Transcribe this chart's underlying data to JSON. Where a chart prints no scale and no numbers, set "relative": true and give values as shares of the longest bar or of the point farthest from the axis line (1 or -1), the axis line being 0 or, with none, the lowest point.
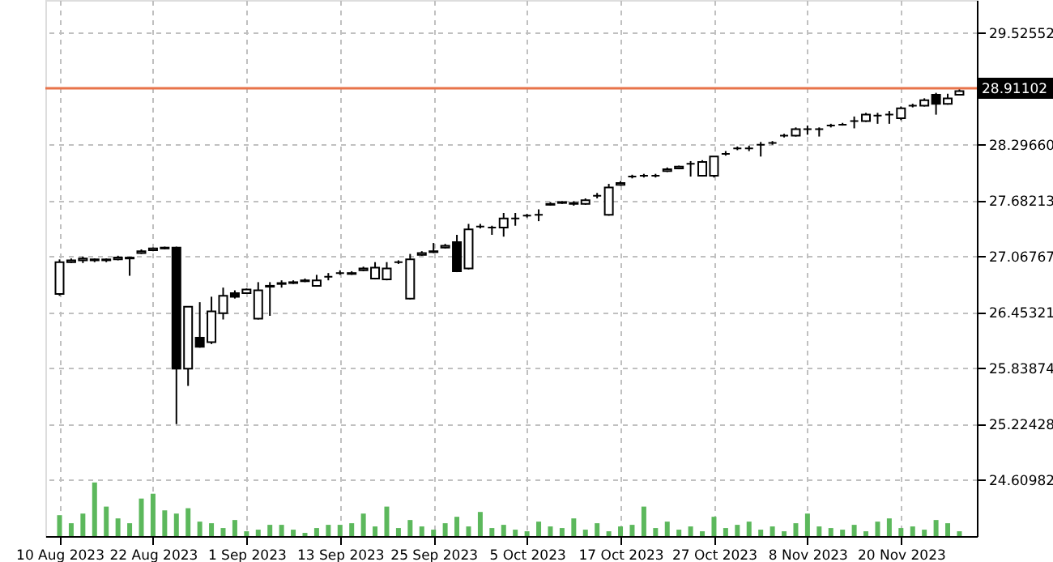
{
  "chart_data": [
    {
      "type": "candlestick",
      "categories": [
        "10 Aug 2023",
        null,
        null,
        null,
        null,
        null,
        null,
        null,
        "22 Aug 2023",
        null,
        null,
        null,
        null,
        null,
        null,
        null,
        "1 Sep 2023",
        null,
        null,
        null,
        null,
        null,
        null,
        null,
        "13 Sep 2023",
        null,
        null,
        null,
        null,
        null,
        null,
        null,
        "25 Sep 2023",
        null,
        null,
        null,
        null,
        null,
        null,
        null,
        "5 Oct 2023",
        null,
        null,
        null,
        null,
        null,
        null,
        null,
        "17 Oct 2023",
        null,
        null,
        null,
        null,
        null,
        null,
        null,
        "27 Oct 2023",
        null,
        null,
        null,
        null,
        null,
        null,
        null,
        "8 Nov 2023",
        null,
        null,
        null,
        null,
        null,
        null,
        null,
        "20 Nov 2023",
        null,
        null,
        null,
        null,
        null
      ],
      "ohlc": [
        [
          26.65,
          27.03,
          26.63,
          27.0
        ],
        [
          27.0,
          27.04,
          26.99,
          27.02
        ],
        [
          27.02,
          27.06,
          26.99,
          27.04
        ],
        [
          27.03,
          27.04,
          27.0,
          27.02
        ],
        [
          27.02,
          27.04,
          27.0,
          27.03
        ],
        [
          27.03,
          27.07,
          27.02,
          27.05
        ],
        [
          27.05,
          27.06,
          26.85,
          27.04
        ],
        [
          27.1,
          27.14,
          27.09,
          27.12
        ],
        [
          27.13,
          27.16,
          27.12,
          27.15
        ],
        [
          27.15,
          27.17,
          27.14,
          27.16
        ],
        [
          27.16,
          27.17,
          25.22,
          25.83
        ],
        [
          25.83,
          26.51,
          25.64,
          26.51
        ],
        [
          26.17,
          26.56,
          26.06,
          26.07
        ],
        [
          26.12,
          26.62,
          26.1,
          26.46
        ],
        [
          26.44,
          26.72,
          26.37,
          26.63
        ],
        [
          26.66,
          26.69,
          26.6,
          26.62
        ],
        [
          26.66,
          26.71,
          26.65,
          26.7
        ],
        [
          26.38,
          26.78,
          26.37,
          26.69
        ],
        [
          26.74,
          26.78,
          26.41,
          26.73
        ],
        [
          26.76,
          26.8,
          26.72,
          26.77
        ],
        [
          26.77,
          26.8,
          26.76,
          26.78
        ],
        [
          26.79,
          26.82,
          26.78,
          26.8
        ],
        [
          26.74,
          26.86,
          26.73,
          26.8
        ],
        [
          26.84,
          26.88,
          26.8,
          26.84
        ],
        [
          26.88,
          26.91,
          26.86,
          26.88
        ],
        [
          26.87,
          26.9,
          26.86,
          26.88
        ],
        [
          26.91,
          26.95,
          26.9,
          26.93
        ],
        [
          26.82,
          27.0,
          26.81,
          26.94
        ],
        [
          26.81,
          27.0,
          26.8,
          26.93
        ],
        [
          27.0,
          27.02,
          26.98,
          27.0
        ],
        [
          26.6,
          27.09,
          26.59,
          27.03
        ],
        [
          27.08,
          27.12,
          27.07,
          27.1
        ],
        [
          27.11,
          27.21,
          27.1,
          27.12
        ],
        [
          27.16,
          27.2,
          27.15,
          27.18
        ],
        [
          27.22,
          27.3,
          26.89,
          26.9
        ],
        [
          26.93,
          27.42,
          26.92,
          27.36
        ],
        [
          27.39,
          27.42,
          27.37,
          27.39
        ],
        [
          27.38,
          27.4,
          27.3,
          27.38
        ],
        [
          27.38,
          27.54,
          27.28,
          27.48
        ],
        [
          27.48,
          27.54,
          27.4,
          27.48
        ],
        [
          27.51,
          27.53,
          27.49,
          27.51
        ],
        [
          27.52,
          27.58,
          27.45,
          27.52
        ],
        [
          27.63,
          27.66,
          27.62,
          27.64
        ],
        [
          27.65,
          27.67,
          27.64,
          27.66
        ],
        [
          27.65,
          27.67,
          27.62,
          27.64
        ],
        [
          27.64,
          27.7,
          27.63,
          27.68
        ],
        [
          27.73,
          27.76,
          27.7,
          27.73
        ],
        [
          27.52,
          27.86,
          27.51,
          27.82
        ],
        [
          27.85,
          27.89,
          27.84,
          27.87
        ],
        [
          27.94,
          27.96,
          27.92,
          27.94
        ],
        [
          27.95,
          27.97,
          27.93,
          27.95
        ],
        [
          27.95,
          27.97,
          27.93,
          27.95
        ],
        [
          28.0,
          28.04,
          27.99,
          28.02
        ],
        [
          28.03,
          28.06,
          28.02,
          28.05
        ],
        [
          28.08,
          28.11,
          27.94,
          28.08
        ],
        [
          27.95,
          28.12,
          27.94,
          28.1
        ],
        [
          27.95,
          28.16,
          27.93,
          28.16
        ],
        [
          28.19,
          28.22,
          28.17,
          28.19
        ],
        [
          28.25,
          28.27,
          28.23,
          28.25
        ],
        [
          28.25,
          28.28,
          28.22,
          28.25
        ],
        [
          28.29,
          28.32,
          28.16,
          28.29
        ],
        [
          28.31,
          28.33,
          28.29,
          28.31
        ],
        [
          28.39,
          28.41,
          28.37,
          28.39
        ],
        [
          28.39,
          28.48,
          28.38,
          28.46
        ],
        [
          28.46,
          28.5,
          28.4,
          28.46
        ],
        [
          28.46,
          28.48,
          28.38,
          28.46
        ],
        [
          28.5,
          28.52,
          28.48,
          28.5
        ],
        [
          28.51,
          28.53,
          28.5,
          28.51
        ],
        [
          28.55,
          28.6,
          28.47,
          28.55
        ],
        [
          28.55,
          28.64,
          28.54,
          28.62
        ],
        [
          28.61,
          28.64,
          28.52,
          28.61
        ],
        [
          28.62,
          28.66,
          28.52,
          28.62
        ],
        [
          28.58,
          28.71,
          28.56,
          28.69
        ],
        [
          28.72,
          28.74,
          28.7,
          28.72
        ],
        [
          28.72,
          28.8,
          28.71,
          28.78
        ],
        [
          28.84,
          28.86,
          28.62,
          28.74
        ],
        [
          28.74,
          28.85,
          28.73,
          28.8
        ],
        [
          28.84,
          28.9,
          28.83,
          28.88
        ]
      ],
      "ylim": [
        23.99,
        29.88
      ],
      "yticks": [
        24.60982,
        25.22428,
        25.83874,
        26.45321,
        27.06767,
        27.68213,
        {
          "value": 28.2966,
          "label": "28.29660"
        },
        29.52552
      ],
      "ref_lines": [
        {
          "axis": "y",
          "value": 28.91102,
          "label": "28.91102",
          "color": "#e8734a"
        }
      ],
      "grid": true
    },
    {
      "type": "bar",
      "relative": true,
      "color": "#5cb85c",
      "categories": [
        null,
        null,
        null,
        null,
        null,
        null,
        null,
        null,
        null,
        null,
        null,
        null,
        null,
        null,
        null,
        null,
        null,
        null,
        null,
        null,
        null,
        null,
        null,
        null,
        null,
        null,
        null,
        null,
        null,
        null,
        null,
        null,
        null,
        null,
        null,
        null,
        null,
        null,
        null,
        null,
        null,
        null,
        null,
        null,
        null,
        null,
        null,
        null,
        null,
        null,
        null,
        null,
        null,
        null,
        null,
        null,
        null,
        null,
        null,
        null,
        null,
        null,
        null,
        null,
        null,
        null,
        null,
        null,
        null,
        null,
        null,
        null,
        null,
        null,
        null,
        null,
        null,
        null
      ],
      "values": [
        0.39,
        0.24,
        0.42,
        1.0,
        0.55,
        0.33,
        0.24,
        0.7,
        0.79,
        0.48,
        0.42,
        0.52,
        0.27,
        0.24,
        0.15,
        0.3,
        0.09,
        0.12,
        0.21,
        0.21,
        0.12,
        0.06,
        0.15,
        0.21,
        0.21,
        0.24,
        0.42,
        0.18,
        0.55,
        0.15,
        0.3,
        0.18,
        0.12,
        0.24,
        0.36,
        0.18,
        0.45,
        0.15,
        0.21,
        0.12,
        0.09,
        0.27,
        0.18,
        0.15,
        0.33,
        0.12,
        0.24,
        0.09,
        0.18,
        0.21,
        0.55,
        0.15,
        0.27,
        0.12,
        0.18,
        0.09,
        0.36,
        0.15,
        0.21,
        0.27,
        0.12,
        0.18,
        0.09,
        0.24,
        0.42,
        0.18,
        0.15,
        0.12,
        0.21,
        0.09,
        0.27,
        0.33,
        0.15,
        0.18,
        0.12,
        0.3,
        0.24,
        0.09
      ]
    }
  ]
}
